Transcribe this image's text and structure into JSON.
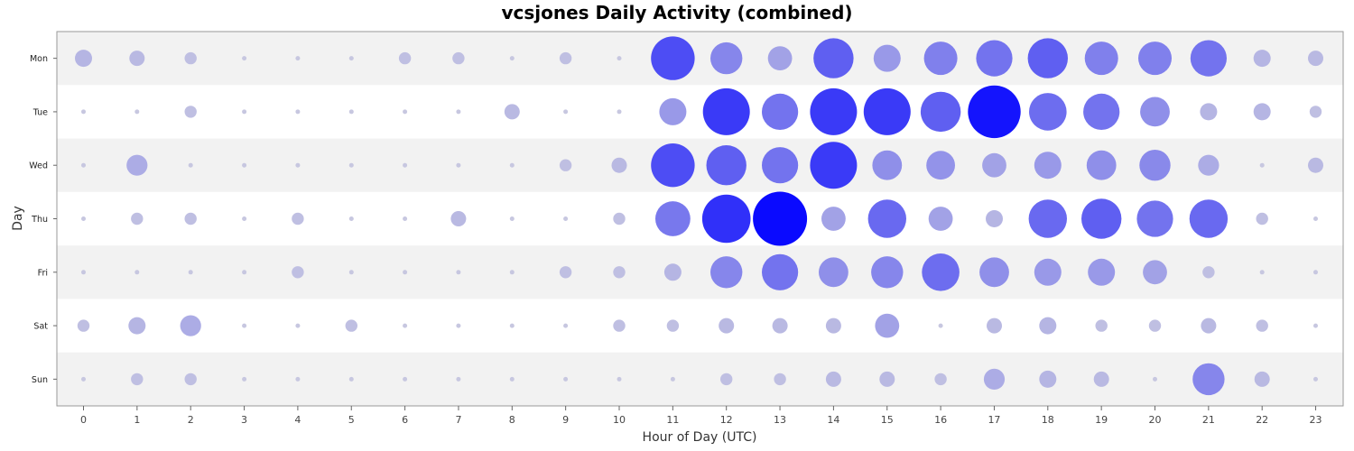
{
  "chart_data": {
    "type": "scatter",
    "subtype": "bubble-punchcard",
    "title": "vcsjones Daily Activity (combined)",
    "xlabel": "Hour of Day (UTC)",
    "ylabel": "Day",
    "x_categories": [
      "0",
      "1",
      "2",
      "3",
      "4",
      "5",
      "6",
      "7",
      "8",
      "9",
      "10",
      "11",
      "12",
      "13",
      "14",
      "15",
      "16",
      "17",
      "18",
      "19",
      "20",
      "21",
      "22",
      "23"
    ],
    "y_categories": [
      "Mon",
      "Tue",
      "Wed",
      "Thu",
      "Fri",
      "Sat",
      "Sun"
    ],
    "max_value": 10,
    "colors": {
      "low": "#c8c8e0",
      "high": "#0a0aff",
      "band_shaded": "#f2f2f2",
      "band_plain": "#ffffff",
      "border": "#999999"
    },
    "series": [
      {
        "name": "Mon",
        "values": [
          1.0,
          0.8,
          0.5,
          0.05,
          0.05,
          0.05,
          0.5,
          0.5,
          0.05,
          0.5,
          0.05,
          6.5,
          3.5,
          2.0,
          5.5,
          2.5,
          3.8,
          4.5,
          5.5,
          3.8,
          3.8,
          4.5,
          1.0,
          0.8
        ]
      },
      {
        "name": "Tue",
        "values": [
          0.05,
          0.05,
          0.5,
          0.05,
          0.05,
          0.05,
          0.05,
          0.05,
          0.8,
          0.05,
          0.05,
          2.5,
          7.5,
          4.5,
          7.5,
          7.5,
          5.5,
          9.5,
          4.8,
          4.5,
          3.0,
          1.0,
          1.0,
          0.5
        ]
      },
      {
        "name": "Wed",
        "values": [
          0.05,
          1.5,
          0.05,
          0.05,
          0.05,
          0.05,
          0.05,
          0.05,
          0.05,
          0.5,
          0.8,
          6.5,
          5.5,
          4.5,
          7.5,
          3.0,
          2.8,
          2.0,
          2.5,
          3.0,
          3.3,
          1.5,
          0.05,
          0.8
        ]
      },
      {
        "name": "Thu",
        "values": [
          0.05,
          0.5,
          0.5,
          0.05,
          0.5,
          0.05,
          0.05,
          0.8,
          0.05,
          0.05,
          0.5,
          4.2,
          8.0,
          10.0,
          2.0,
          5.0,
          2.0,
          1.0,
          5.0,
          5.5,
          4.5,
          5.0,
          0.5,
          0.05
        ]
      },
      {
        "name": "Fri",
        "values": [
          0.05,
          0.05,
          0.05,
          0.05,
          0.5,
          0.05,
          0.05,
          0.05,
          0.05,
          0.5,
          0.5,
          1.0,
          3.5,
          4.5,
          3.0,
          3.5,
          4.8,
          3.0,
          2.5,
          2.5,
          2.0,
          0.5,
          0.05,
          0.05
        ]
      },
      {
        "name": "Sat",
        "values": [
          0.5,
          1.0,
          1.5,
          0.05,
          0.05,
          0.5,
          0.05,
          0.05,
          0.05,
          0.05,
          0.5,
          0.5,
          0.8,
          0.8,
          0.8,
          2.0,
          0.05,
          0.8,
          1.0,
          0.5,
          0.5,
          0.8,
          0.5,
          0.05
        ]
      },
      {
        "name": "Sun",
        "values": [
          0.05,
          0.5,
          0.5,
          0.05,
          0.05,
          0.05,
          0.05,
          0.05,
          0.05,
          0.05,
          0.05,
          0.05,
          0.5,
          0.5,
          0.8,
          0.8,
          0.5,
          1.5,
          1.0,
          0.8,
          0.05,
          3.5,
          0.8,
          0.05
        ]
      }
    ]
  }
}
